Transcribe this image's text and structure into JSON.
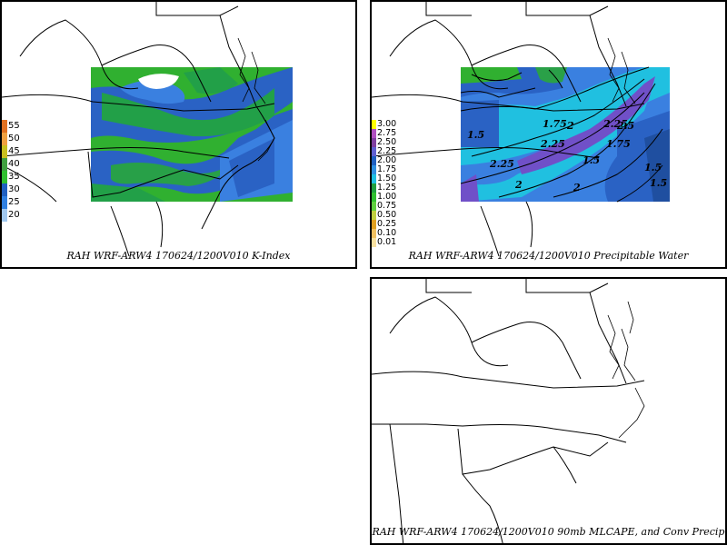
{
  "panels": {
    "kindex": {
      "caption": "RAH WRF-ARW4 170624/1200V010  K-Index",
      "legend": [
        {
          "label": "55",
          "color": "#e07020"
        },
        {
          "label": "50",
          "color": "#f0a040"
        },
        {
          "label": "45",
          "color": "#c8c020"
        },
        {
          "label": "40",
          "color": "#40a040"
        },
        {
          "label": "35",
          "color": "#30c030"
        },
        {
          "label": "30",
          "color": "#2060c0"
        },
        {
          "label": "25",
          "color": "#3080e0"
        },
        {
          "label": "20",
          "color": "#a0c8f0"
        }
      ]
    },
    "pwat": {
      "caption": "RAH WRF-ARW4 170624/1200V010  Precipitable Water",
      "legend": [
        {
          "label": "3.00",
          "color": "#ffff00"
        },
        {
          "label": "2.75",
          "color": "#b050c0"
        },
        {
          "label": "2.50",
          "color": "#8040a0"
        },
        {
          "label": "2.25",
          "color": "#6060d0"
        },
        {
          "label": "2.00",
          "color": "#2060c0"
        },
        {
          "label": "1.75",
          "color": "#3090e0"
        },
        {
          "label": "1.50",
          "color": "#20c0e0"
        },
        {
          "label": "1.25",
          "color": "#20a040"
        },
        {
          "label": "1.00",
          "color": "#30c030"
        },
        {
          "label": "0.75",
          "color": "#60d040"
        },
        {
          "label": "0.50",
          "color": "#c0d040"
        },
        {
          "label": "0.25",
          "color": "#e0a020"
        },
        {
          "label": "0.10",
          "color": "#f0c060"
        },
        {
          "label": "0.01",
          "color": "#f8e0a0"
        }
      ],
      "contour_labels": [
        "1.75",
        "2",
        "2.25",
        "2.25",
        "2.25",
        "1.5",
        "1.5",
        "2",
        "2",
        "1.75",
        "1.5",
        "1.5",
        "2.5"
      ]
    },
    "mlcape": {
      "caption": "RAH WRF-ARW4 170624/1200V010  90mb MLCAPE, and Conv Precip"
    }
  }
}
